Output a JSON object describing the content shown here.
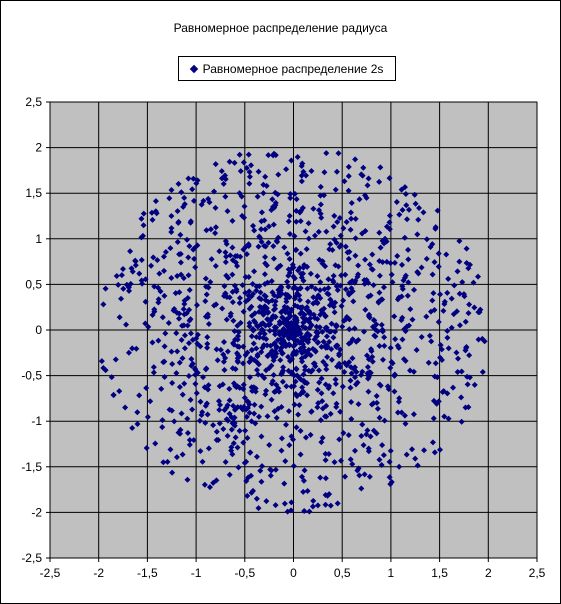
{
  "chart_data": {
    "type": "scatter",
    "title": "Равномерное распределение радиуса",
    "legend": {
      "position": "top-center"
    },
    "series": [
      {
        "name": "Равномерное распределение 2s",
        "marker": "diamond",
        "color": "#000080",
        "point_count": 1500,
        "distribution": "radius uniform on [0, 2], angle uniform on [0, 2π]"
      }
    ],
    "xlim": [
      -2.5,
      2.5
    ],
    "ylim": [
      -2.5,
      2.5
    ],
    "xticks": [
      "-2,5",
      "-2",
      "-1,5",
      "-1",
      "-0,5",
      "0",
      "0,5",
      "1",
      "1,5",
      "2",
      "2,5"
    ],
    "yticks": [
      "2,5",
      "2",
      "1,5",
      "1",
      "0,5",
      "0",
      "-0,5",
      "-1",
      "-1,5",
      "-2",
      "-2,5"
    ],
    "grid": true,
    "plot_background": "#c0c0c0",
    "xlabel": "",
    "ylabel": ""
  }
}
